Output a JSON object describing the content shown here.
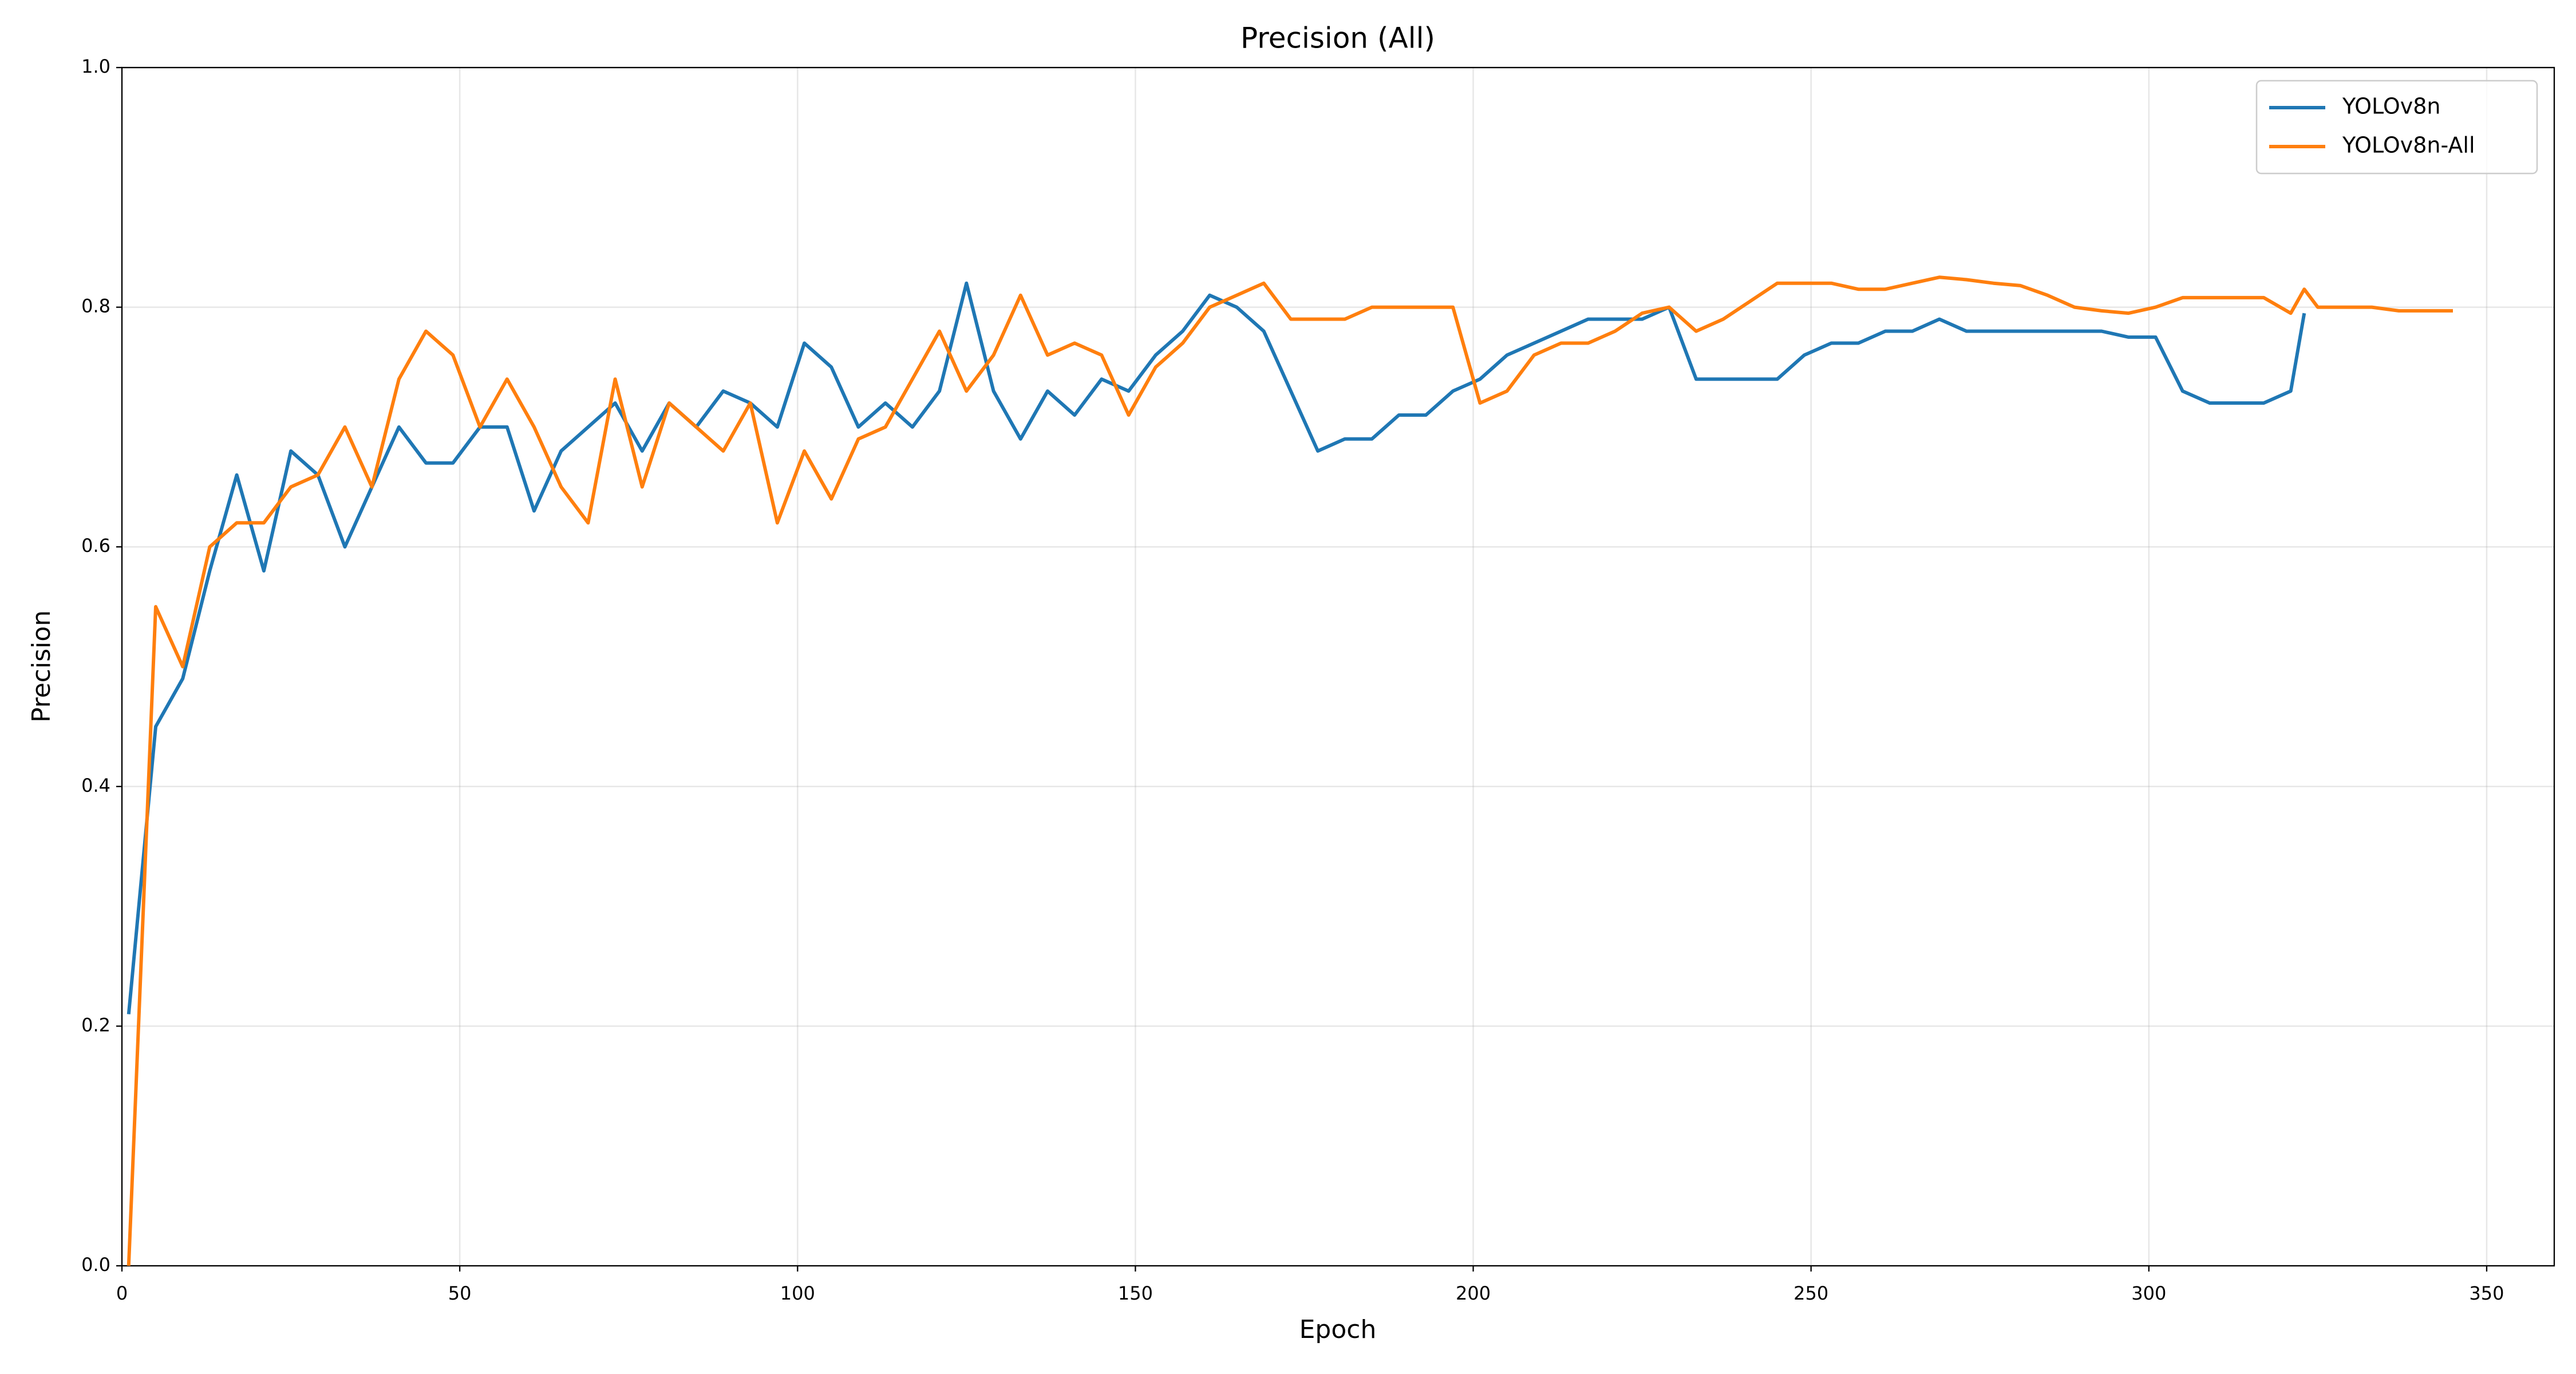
{
  "chart_data": {
    "type": "line",
    "title": "Precision (All)",
    "x_label": "Epoch",
    "y_label": "Precision",
    "x": [
      1,
      5,
      9,
      13,
      17,
      21,
      25,
      29,
      33,
      37,
      41,
      45,
      49,
      53,
      57,
      61,
      65,
      69,
      73,
      77,
      81,
      85,
      89,
      93,
      97,
      101,
      105,
      109,
      113,
      117,
      121,
      125,
      129,
      133,
      137,
      141,
      145,
      149,
      153,
      157,
      161,
      165,
      169,
      173,
      177,
      181,
      185,
      189,
      193,
      197,
      201,
      205,
      209,
      213,
      217,
      221,
      225,
      229,
      233,
      237,
      241,
      245,
      249,
      253,
      257,
      261,
      265,
      269,
      273,
      277,
      281,
      285,
      289,
      293,
      297,
      301,
      305,
      309,
      313,
      317,
      321,
      323,
      325,
      329,
      333,
      337,
      341,
      345
    ],
    "series": [
      {
        "name": "YOLOv8n",
        "color": "#1f77b4",
        "values": [
          0.21,
          0.45,
          0.49,
          0.58,
          0.66,
          0.58,
          0.68,
          0.66,
          0.6,
          0.65,
          0.7,
          0.67,
          0.67,
          0.7,
          0.7,
          0.63,
          0.68,
          0.7,
          0.72,
          0.68,
          0.72,
          0.7,
          0.73,
          0.72,
          0.7,
          0.77,
          0.75,
          0.7,
          0.72,
          0.7,
          0.73,
          0.82,
          0.73,
          0.69,
          0.73,
          0.71,
          0.74,
          0.73,
          0.76,
          0.78,
          0.81,
          0.8,
          0.78,
          0.73,
          0.68,
          0.69,
          0.69,
          0.71,
          0.71,
          0.73,
          0.74,
          0.76,
          0.77,
          0.78,
          0.79,
          0.79,
          0.79,
          0.8,
          0.74,
          0.74,
          0.74,
          0.74,
          0.76,
          0.77,
          0.77,
          0.78,
          0.78,
          0.79,
          0.78,
          0.78,
          0.78,
          0.78,
          0.78,
          0.78,
          0.775,
          0.775,
          0.73,
          0.72,
          0.72,
          0.72,
          0.73,
          0.795,
          null,
          null,
          null,
          null,
          null,
          null
        ]
      },
      {
        "name": "YOLOv8n-All",
        "color": "#ff7f0e",
        "values": [
          0.0,
          0.55,
          0.5,
          0.6,
          0.62,
          0.62,
          0.65,
          0.66,
          0.7,
          0.65,
          0.74,
          0.78,
          0.76,
          0.7,
          0.74,
          0.7,
          0.65,
          0.62,
          0.74,
          0.65,
          0.72,
          0.7,
          0.68,
          0.72,
          0.62,
          0.68,
          0.64,
          0.69,
          0.7,
          0.74,
          0.78,
          0.73,
          0.76,
          0.81,
          0.76,
          0.77,
          0.76,
          0.71,
          0.75,
          0.77,
          0.8,
          0.81,
          0.82,
          0.79,
          0.79,
          0.79,
          0.8,
          0.8,
          0.8,
          0.8,
          0.72,
          0.73,
          0.76,
          0.77,
          0.77,
          0.78,
          0.795,
          0.8,
          0.78,
          0.79,
          0.805,
          0.82,
          0.82,
          0.82,
          0.815,
          0.815,
          0.82,
          0.825,
          0.823,
          0.82,
          0.818,
          0.81,
          0.8,
          0.797,
          0.795,
          0.8,
          0.808,
          0.808,
          0.808,
          0.808,
          0.795,
          0.815,
          0.8,
          0.8,
          0.8,
          0.797,
          0.797,
          0.797
        ]
      }
    ],
    "xlim": [
      0,
      360
    ],
    "ylim": [
      0,
      1
    ],
    "xticks": [
      0,
      50,
      100,
      150,
      200,
      250,
      300,
      350
    ],
    "yticks": [
      {
        "value": 0,
        "label": "0.0"
      },
      {
        "value": 0.2,
        "label": "0.2"
      },
      {
        "value": 0.4,
        "label": "0.4"
      },
      {
        "value": 0.6,
        "label": "0.6"
      },
      {
        "value": 0.8,
        "label": "0.8"
      },
      {
        "value": 1,
        "label": "1.0"
      }
    ],
    "grid": true,
    "legend": "upper right"
  }
}
